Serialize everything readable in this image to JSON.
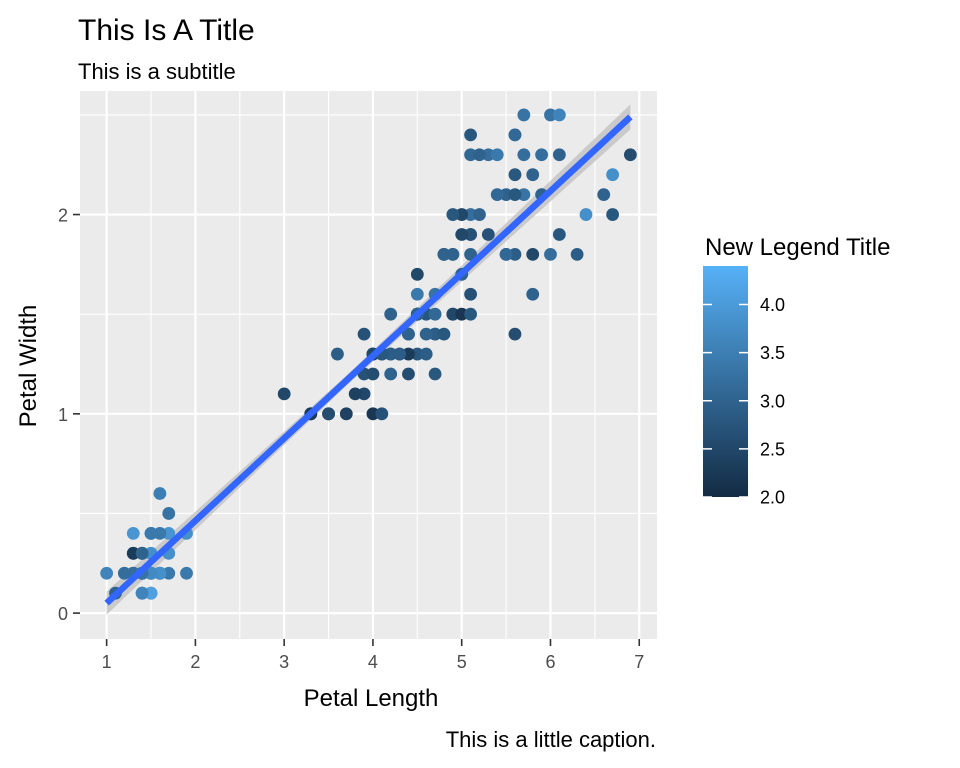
{
  "chart_data": {
    "type": "scatter",
    "title": "This Is A Title",
    "subtitle": "This is a subtitle",
    "caption": "This is a little caption.",
    "xlabel": "Petal Length",
    "ylabel": "Petal Width",
    "xlim": [
      0.7,
      7.2
    ],
    "ylim": [
      -0.13,
      2.62
    ],
    "x_ticks": [
      1,
      2,
      3,
      4,
      5,
      6,
      7
    ],
    "x_tick_labels": [
      "1",
      "2",
      "3",
      "4",
      "5",
      "6",
      "7"
    ],
    "y_ticks": [
      0,
      1,
      2
    ],
    "y_tick_labels": [
      "0",
      "1",
      "2"
    ],
    "grid": true,
    "legend": {
      "title": "New Legend Title",
      "placement": "right",
      "type": "colorbar",
      "range": [
        2.0,
        4.4
      ],
      "breaks": [
        2.0,
        2.5,
        3.0,
        3.5,
        4.0
      ],
      "break_labels": [
        "2.0",
        "2.5",
        "3.0",
        "3.5",
        "4.0"
      ],
      "low_color": "#132B43",
      "high_color": "#56B1F7"
    },
    "trend_line": {
      "method": "linear",
      "start": [
        1.0,
        0.05
      ],
      "end": [
        6.9,
        2.49
      ],
      "color": "#3366FF",
      "band_color": "#bfbfbf"
    },
    "points": [
      {
        "x": 1.4,
        "y": 0.2,
        "c": 3.5
      },
      {
        "x": 1.4,
        "y": 0.2,
        "c": 3.0
      },
      {
        "x": 1.3,
        "y": 0.2,
        "c": 3.2
      },
      {
        "x": 1.5,
        "y": 0.2,
        "c": 3.1
      },
      {
        "x": 1.4,
        "y": 0.2,
        "c": 3.6
      },
      {
        "x": 1.7,
        "y": 0.4,
        "c": 3.9
      },
      {
        "x": 1.4,
        "y": 0.3,
        "c": 3.4
      },
      {
        "x": 1.5,
        "y": 0.2,
        "c": 3.4
      },
      {
        "x": 1.4,
        "y": 0.2,
        "c": 2.9
      },
      {
        "x": 1.5,
        "y": 0.1,
        "c": 3.1
      },
      {
        "x": 1.5,
        "y": 0.2,
        "c": 3.7
      },
      {
        "x": 1.6,
        "y": 0.2,
        "c": 3.4
      },
      {
        "x": 1.4,
        "y": 0.1,
        "c": 3.0
      },
      {
        "x": 1.1,
        "y": 0.1,
        "c": 3.0
      },
      {
        "x": 1.2,
        "y": 0.2,
        "c": 4.0
      },
      {
        "x": 1.5,
        "y": 0.4,
        "c": 4.4
      },
      {
        "x": 1.3,
        "y": 0.4,
        "c": 3.9
      },
      {
        "x": 1.4,
        "y": 0.3,
        "c": 3.5
      },
      {
        "x": 1.7,
        "y": 0.3,
        "c": 3.8
      },
      {
        "x": 1.5,
        "y": 0.3,
        "c": 3.8
      },
      {
        "x": 1.7,
        "y": 0.2,
        "c": 3.4
      },
      {
        "x": 1.5,
        "y": 0.4,
        "c": 3.7
      },
      {
        "x": 1.0,
        "y": 0.2,
        "c": 3.6
      },
      {
        "x": 1.7,
        "y": 0.5,
        "c": 3.3
      },
      {
        "x": 1.9,
        "y": 0.2,
        "c": 3.4
      },
      {
        "x": 1.6,
        "y": 0.2,
        "c": 3.0
      },
      {
        "x": 1.6,
        "y": 0.4,
        "c": 3.4
      },
      {
        "x": 1.5,
        "y": 0.2,
        "c": 3.5
      },
      {
        "x": 1.4,
        "y": 0.2,
        "c": 3.4
      },
      {
        "x": 1.6,
        "y": 0.2,
        "c": 3.2
      },
      {
        "x": 1.6,
        "y": 0.2,
        "c": 3.1
      },
      {
        "x": 1.5,
        "y": 0.4,
        "c": 3.4
      },
      {
        "x": 1.5,
        "y": 0.1,
        "c": 4.1
      },
      {
        "x": 1.4,
        "y": 0.2,
        "c": 4.2
      },
      {
        "x": 1.5,
        "y": 0.2,
        "c": 3.1
      },
      {
        "x": 1.2,
        "y": 0.2,
        "c": 3.2
      },
      {
        "x": 1.3,
        "y": 0.2,
        "c": 3.5
      },
      {
        "x": 1.4,
        "y": 0.1,
        "c": 3.6
      },
      {
        "x": 1.3,
        "y": 0.2,
        "c": 3.0
      },
      {
        "x": 1.5,
        "y": 0.2,
        "c": 3.4
      },
      {
        "x": 1.3,
        "y": 0.3,
        "c": 3.5
      },
      {
        "x": 1.3,
        "y": 0.3,
        "c": 2.3
      },
      {
        "x": 1.3,
        "y": 0.2,
        "c": 3.2
      },
      {
        "x": 1.6,
        "y": 0.6,
        "c": 3.5
      },
      {
        "x": 1.9,
        "y": 0.4,
        "c": 3.8
      },
      {
        "x": 1.4,
        "y": 0.3,
        "c": 3.0
      },
      {
        "x": 1.6,
        "y": 0.2,
        "c": 3.8
      },
      {
        "x": 1.4,
        "y": 0.2,
        "c": 3.2
      },
      {
        "x": 1.5,
        "y": 0.2,
        "c": 3.7
      },
      {
        "x": 1.4,
        "y": 0.2,
        "c": 3.3
      },
      {
        "x": 4.7,
        "y": 1.4,
        "c": 3.2
      },
      {
        "x": 4.5,
        "y": 1.5,
        "c": 3.2
      },
      {
        "x": 4.9,
        "y": 1.5,
        "c": 3.1
      },
      {
        "x": 4.0,
        "y": 1.3,
        "c": 2.3
      },
      {
        "x": 4.6,
        "y": 1.5,
        "c": 2.8
      },
      {
        "x": 4.5,
        "y": 1.3,
        "c": 2.8
      },
      {
        "x": 4.7,
        "y": 1.6,
        "c": 3.3
      },
      {
        "x": 3.3,
        "y": 1.0,
        "c": 2.4
      },
      {
        "x": 4.6,
        "y": 1.3,
        "c": 2.9
      },
      {
        "x": 3.9,
        "y": 1.4,
        "c": 2.7
      },
      {
        "x": 3.5,
        "y": 1.0,
        "c": 2.0
      },
      {
        "x": 4.2,
        "y": 1.5,
        "c": 3.0
      },
      {
        "x": 4.0,
        "y": 1.0,
        "c": 2.2
      },
      {
        "x": 4.7,
        "y": 1.4,
        "c": 2.9
      },
      {
        "x": 3.6,
        "y": 1.3,
        "c": 2.9
      },
      {
        "x": 4.4,
        "y": 1.4,
        "c": 3.1
      },
      {
        "x": 4.5,
        "y": 1.5,
        "c": 3.0
      },
      {
        "x": 4.1,
        "y": 1.0,
        "c": 2.7
      },
      {
        "x": 4.5,
        "y": 1.5,
        "c": 2.2
      },
      {
        "x": 3.9,
        "y": 1.1,
        "c": 2.5
      },
      {
        "x": 4.8,
        "y": 1.8,
        "c": 3.2
      },
      {
        "x": 4.0,
        "y": 1.3,
        "c": 2.8
      },
      {
        "x": 4.9,
        "y": 1.5,
        "c": 2.5
      },
      {
        "x": 4.7,
        "y": 1.2,
        "c": 2.8
      },
      {
        "x": 4.3,
        "y": 1.3,
        "c": 2.9
      },
      {
        "x": 4.4,
        "y": 1.4,
        "c": 3.0
      },
      {
        "x": 4.8,
        "y": 1.4,
        "c": 2.8
      },
      {
        "x": 5.0,
        "y": 1.7,
        "c": 3.0
      },
      {
        "x": 4.5,
        "y": 1.5,
        "c": 2.9
      },
      {
        "x": 3.5,
        "y": 1.0,
        "c": 2.6
      },
      {
        "x": 3.8,
        "y": 1.1,
        "c": 2.4
      },
      {
        "x": 3.7,
        "y": 1.0,
        "c": 2.4
      },
      {
        "x": 3.9,
        "y": 1.2,
        "c": 2.7
      },
      {
        "x": 5.1,
        "y": 1.6,
        "c": 2.7
      },
      {
        "x": 4.5,
        "y": 1.5,
        "c": 3.0
      },
      {
        "x": 4.5,
        "y": 1.6,
        "c": 3.4
      },
      {
        "x": 4.7,
        "y": 1.5,
        "c": 3.1
      },
      {
        "x": 4.4,
        "y": 1.3,
        "c": 2.3
      },
      {
        "x": 4.1,
        "y": 1.3,
        "c": 3.0
      },
      {
        "x": 4.0,
        "y": 1.3,
        "c": 2.5
      },
      {
        "x": 4.4,
        "y": 1.2,
        "c": 2.6
      },
      {
        "x": 4.6,
        "y": 1.4,
        "c": 3.0
      },
      {
        "x": 4.0,
        "y": 1.2,
        "c": 2.6
      },
      {
        "x": 3.3,
        "y": 1.0,
        "c": 2.3
      },
      {
        "x": 4.2,
        "y": 1.3,
        "c": 2.7
      },
      {
        "x": 4.2,
        "y": 1.2,
        "c": 3.0
      },
      {
        "x": 4.2,
        "y": 1.3,
        "c": 2.9
      },
      {
        "x": 4.3,
        "y": 1.3,
        "c": 2.9
      },
      {
        "x": 3.0,
        "y": 1.1,
        "c": 2.5
      },
      {
        "x": 4.1,
        "y": 1.3,
        "c": 2.8
      },
      {
        "x": 6.0,
        "y": 2.5,
        "c": 3.3
      },
      {
        "x": 5.1,
        "y": 1.9,
        "c": 2.7
      },
      {
        "x": 5.9,
        "y": 2.1,
        "c": 3.0
      },
      {
        "x": 5.6,
        "y": 1.8,
        "c": 2.9
      },
      {
        "x": 5.8,
        "y": 2.2,
        "c": 3.0
      },
      {
        "x": 6.6,
        "y": 2.1,
        "c": 3.0
      },
      {
        "x": 4.5,
        "y": 1.7,
        "c": 2.5
      },
      {
        "x": 6.3,
        "y": 1.8,
        "c": 2.9
      },
      {
        "x": 5.8,
        "y": 1.8,
        "c": 2.5
      },
      {
        "x": 6.1,
        "y": 2.5,
        "c": 3.6
      },
      {
        "x": 5.1,
        "y": 2.0,
        "c": 3.2
      },
      {
        "x": 5.3,
        "y": 1.9,
        "c": 2.7
      },
      {
        "x": 5.5,
        "y": 2.1,
        "c": 3.0
      },
      {
        "x": 5.0,
        "y": 2.0,
        "c": 2.5
      },
      {
        "x": 5.1,
        "y": 2.4,
        "c": 2.8
      },
      {
        "x": 5.3,
        "y": 2.3,
        "c": 3.2
      },
      {
        "x": 5.5,
        "y": 1.8,
        "c": 3.0
      },
      {
        "x": 6.7,
        "y": 2.2,
        "c": 3.8
      },
      {
        "x": 6.9,
        "y": 2.3,
        "c": 2.6
      },
      {
        "x": 5.0,
        "y": 1.5,
        "c": 2.2
      },
      {
        "x": 5.7,
        "y": 2.3,
        "c": 3.2
      },
      {
        "x": 4.9,
        "y": 2.0,
        "c": 2.8
      },
      {
        "x": 6.7,
        "y": 2.0,
        "c": 2.8
      },
      {
        "x": 4.9,
        "y": 1.8,
        "c": 2.7
      },
      {
        "x": 5.7,
        "y": 2.1,
        "c": 3.3
      },
      {
        "x": 6.0,
        "y": 1.8,
        "c": 3.2
      },
      {
        "x": 4.8,
        "y": 1.8,
        "c": 2.8
      },
      {
        "x": 4.9,
        "y": 1.8,
        "c": 3.0
      },
      {
        "x": 5.6,
        "y": 2.1,
        "c": 2.8
      },
      {
        "x": 5.8,
        "y": 1.6,
        "c": 3.0
      },
      {
        "x": 6.1,
        "y": 1.9,
        "c": 2.8
      },
      {
        "x": 6.4,
        "y": 2.0,
        "c": 3.8
      },
      {
        "x": 5.6,
        "y": 2.2,
        "c": 2.8
      },
      {
        "x": 5.1,
        "y": 1.5,
        "c": 2.8
      },
      {
        "x": 5.6,
        "y": 1.4,
        "c": 2.6
      },
      {
        "x": 6.1,
        "y": 2.3,
        "c": 3.0
      },
      {
        "x": 5.6,
        "y": 2.4,
        "c": 3.4
      },
      {
        "x": 5.5,
        "y": 1.8,
        "c": 3.1
      },
      {
        "x": 4.8,
        "y": 1.8,
        "c": 3.0
      },
      {
        "x": 5.4,
        "y": 2.1,
        "c": 3.1
      },
      {
        "x": 5.6,
        "y": 2.4,
        "c": 3.1
      },
      {
        "x": 5.1,
        "y": 2.3,
        "c": 3.1
      },
      {
        "x": 5.1,
        "y": 1.9,
        "c": 2.7
      },
      {
        "x": 5.9,
        "y": 2.3,
        "c": 3.2
      },
      {
        "x": 5.7,
        "y": 2.5,
        "c": 3.3
      },
      {
        "x": 5.2,
        "y": 2.3,
        "c": 3.0
      },
      {
        "x": 5.0,
        "y": 1.9,
        "c": 2.5
      },
      {
        "x": 5.2,
        "y": 2.0,
        "c": 3.0
      },
      {
        "x": 5.4,
        "y": 2.3,
        "c": 3.4
      },
      {
        "x": 5.1,
        "y": 1.8,
        "c": 3.0
      }
    ]
  }
}
